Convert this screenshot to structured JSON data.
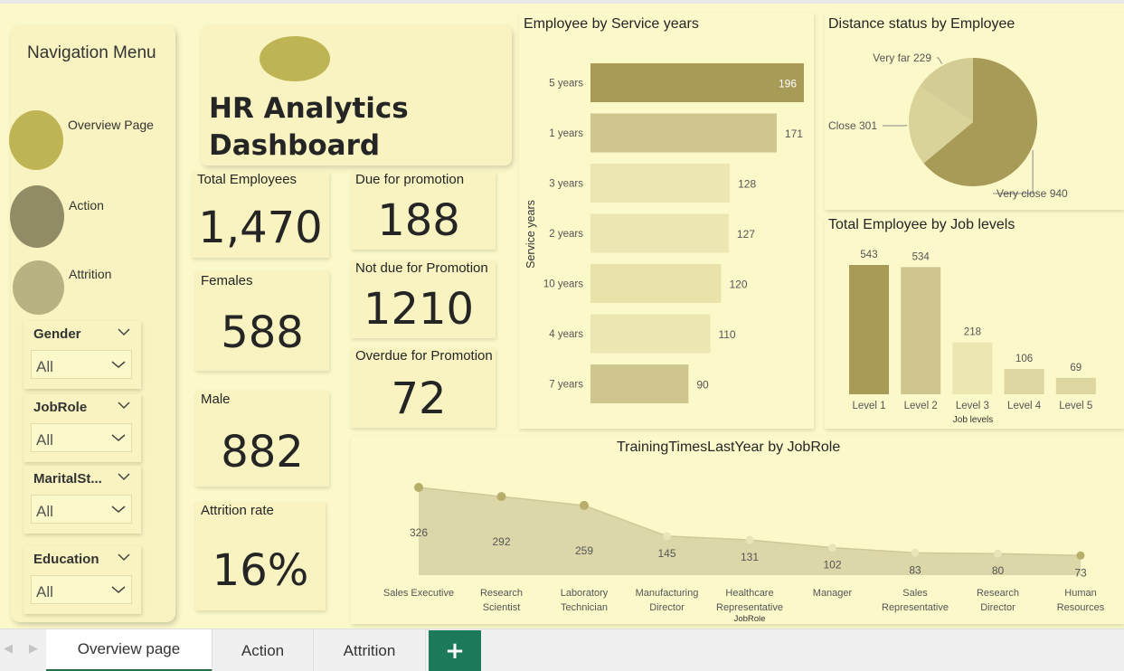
{
  "nav": {
    "title": "Navigation Menu",
    "items": [
      {
        "label": "Overview Page",
        "color": "#bfb453"
      },
      {
        "label": "Action",
        "color": "#908c66"
      },
      {
        "label": "Attrition",
        "color": "#b8b282"
      }
    ]
  },
  "slicers": [
    {
      "title": "Gender",
      "value": "All"
    },
    {
      "title": "JobRole",
      "value": "All"
    },
    {
      "title": "MaritalSt...",
      "value": "All"
    },
    {
      "title": "Education",
      "value": "All"
    }
  ],
  "header": {
    "title_line1": "HR Analytics",
    "title_line2": "Dashboard"
  },
  "kpis": {
    "total_employees": {
      "label": "Total Employees",
      "value": "1,470"
    },
    "females": {
      "label": "Females",
      "value": "588"
    },
    "male": {
      "label": "Male",
      "value": "882"
    },
    "attrition": {
      "label": "Attrition rate",
      "value": "16%"
    },
    "due": {
      "label": "Due for promotion",
      "value": "188"
    },
    "not_due": {
      "label": "Not due for Promotion",
      "value": "1210"
    },
    "overdue": {
      "label": "Overdue for Promotion",
      "value": "72"
    }
  },
  "colors": {
    "dark": "#a89a57",
    "mid": "#cfc58e",
    "light": "#ece6b2",
    "lighter": "#e9e2ab",
    "area": "#dcd7a9",
    "dot": "#b8ad6a",
    "dot_light": "#e9e5b8"
  },
  "chart_data": [
    {
      "type": "bar",
      "orientation": "horizontal",
      "title": "Employee by Service years",
      "ylabel": "Service years",
      "categories": [
        "5 years",
        "1 years",
        "3 years",
        "2 years",
        "10 years",
        "4 years",
        "7 years"
      ],
      "values": [
        196,
        171,
        128,
        127,
        120,
        110,
        90
      ]
    },
    {
      "type": "pie",
      "title": "Distance status by Employee",
      "labels": [
        "Very close",
        "Close",
        "Very far"
      ],
      "values": [
        940,
        301,
        229
      ]
    },
    {
      "type": "bar",
      "title": "Total Employee by Job levels",
      "xlabel": "Job levels",
      "categories": [
        "Level 1",
        "Level 2",
        "Level 3",
        "Level 4",
        "Level 5"
      ],
      "values": [
        543,
        534,
        218,
        106,
        69
      ]
    },
    {
      "type": "area",
      "title": "TrainingTimesLastYear by JobRole",
      "xlabel": "JobRole",
      "categories": [
        [
          "Sales Executive"
        ],
        [
          "Research",
          "Scientist"
        ],
        [
          "Laboratory",
          "Technician"
        ],
        [
          "Manufacturing",
          "Director"
        ],
        [
          "Healthcare",
          "Representative"
        ],
        [
          "Manager"
        ],
        [
          "Sales",
          "Representative"
        ],
        [
          "Research",
          "Director"
        ],
        [
          "Human",
          "Resources"
        ]
      ],
      "values": [
        326,
        292,
        259,
        145,
        131,
        102,
        83,
        80,
        73
      ]
    }
  ],
  "tabs": [
    {
      "label": "Overview page",
      "active": true
    },
    {
      "label": "Action",
      "active": false
    },
    {
      "label": "Attrition",
      "active": false
    }
  ],
  "tab_add_label": "+"
}
